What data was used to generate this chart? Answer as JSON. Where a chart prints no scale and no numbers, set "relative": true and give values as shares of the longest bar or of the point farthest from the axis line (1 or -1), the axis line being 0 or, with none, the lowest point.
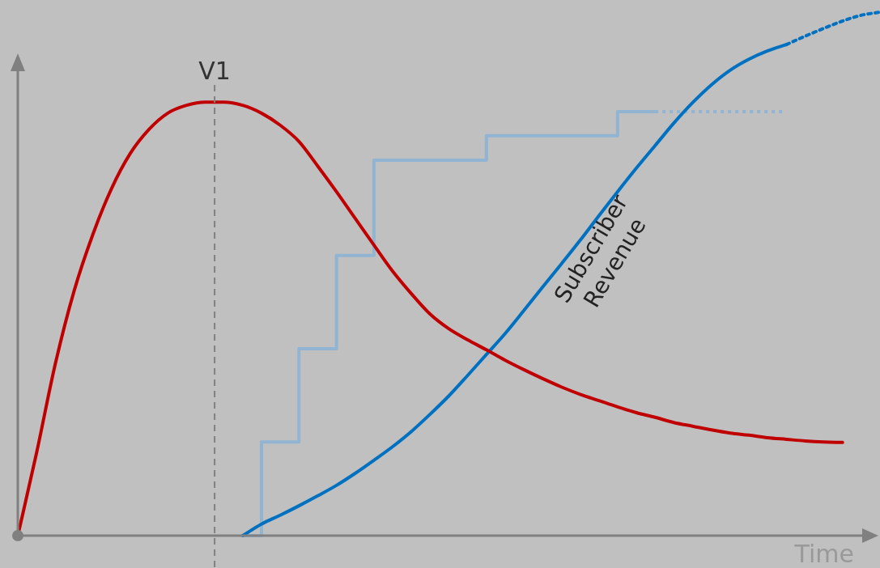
{
  "chart_data": {
    "type": "line",
    "relative": true,
    "xlabel": "Time",
    "legend": false,
    "tick_labels": false,
    "marker": "none",
    "annotations": [
      "V1"
    ],
    "categories": [
      null,
      null,
      null,
      null,
      null,
      null,
      null,
      null,
      null,
      null,
      null,
      null,
      null,
      null,
      null,
      null,
      null,
      null,
      null,
      null,
      null,
      null,
      null,
      null,
      null,
      null,
      null,
      null,
      null,
      null,
      null,
      null,
      null,
      null,
      null,
      null,
      null,
      null,
      null,
      null,
      null,
      null,
      null,
      null,
      null,
      null,
      null
    ],
    "series": [
      {
        "color": "#c00000",
        "values": [
          0,
          0.158,
          0.328,
          0.467,
          0.575,
          0.663,
          0.73,
          0.776,
          0.807,
          0.822,
          0.828,
          0.828,
          0.822,
          0.807,
          0.784,
          0.753,
          0.706,
          0.657,
          0.606,
          0.555,
          0.505,
          0.462,
          0.423,
          0.395,
          0.374,
          0.355,
          0.335,
          0.317,
          0.3,
          0.284,
          0.27,
          0.258,
          0.246,
          0.235,
          0.226,
          0.216,
          0.209,
          0.202,
          0.196,
          0.192,
          0.187,
          0.184,
          0.181,
          0.179,
          0.178,
          null,
          null
        ]
      },
      {
        "name": "Subscriber Revenue",
        "color": "#0070c0",
        "values": [
          null,
          null,
          null,
          null,
          null,
          null,
          null,
          null,
          null,
          null,
          null,
          null,
          0,
          0.022,
          0.039,
          0.057,
          0.076,
          0.096,
          0.119,
          0.144,
          0.17,
          0.199,
          0.232,
          0.267,
          0.306,
          0.346,
          0.386,
          0.43,
          0.475,
          0.519,
          0.564,
          0.611,
          0.657,
          0.702,
          0.745,
          0.788,
          0.827,
          0.861,
          0.889,
          0.91,
          0.926,
          0.938,
          null,
          null,
          null,
          null,
          null
        ]
      },
      {
        "color": "#0070c0",
        "line_style": "dotted",
        "values": [
          null,
          null,
          null,
          null,
          null,
          null,
          null,
          null,
          null,
          null,
          null,
          null,
          null,
          null,
          null,
          null,
          null,
          null,
          null,
          null,
          null,
          null,
          null,
          null,
          null,
          null,
          null,
          null,
          null,
          null,
          null,
          null,
          null,
          null,
          null,
          null,
          null,
          null,
          null,
          null,
          null,
          0.938,
          0.954,
          0.969,
          0.983,
          0.994,
          1
        ]
      },
      {
        "type": "step",
        "color": "#90b4d2",
        "values": [
          null,
          null,
          null,
          null,
          null,
          null,
          null,
          null,
          null,
          null,
          null,
          null,
          0,
          0.179,
          0.179,
          0.357,
          0.357,
          0.535,
          0.535,
          0.717,
          0.717,
          0.717,
          0.717,
          0.717,
          0.717,
          0.764,
          0.764,
          0.764,
          0.764,
          0.764,
          0.764,
          0.764,
          0.81,
          0.81,
          0.81,
          null,
          null,
          null,
          null,
          null,
          null,
          null,
          null,
          null,
          null,
          null,
          null
        ]
      },
      {
        "type": "step",
        "color": "#90b4d2",
        "line_style": "dotted",
        "values": [
          null,
          null,
          null,
          null,
          null,
          null,
          null,
          null,
          null,
          null,
          null,
          null,
          null,
          null,
          null,
          null,
          null,
          null,
          null,
          null,
          null,
          null,
          null,
          null,
          null,
          null,
          null,
          null,
          null,
          null,
          null,
          null,
          null,
          null,
          0.81,
          0.81,
          0.81,
          0.81,
          0.81,
          0.81,
          0.81,
          0.81,
          null,
          null,
          null,
          null,
          null
        ]
      }
    ]
  }
}
